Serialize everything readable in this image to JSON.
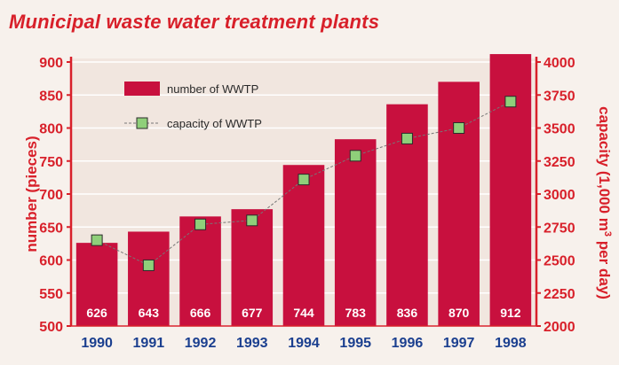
{
  "chart_data": {
    "type": "bar",
    "title": "Municipal waste water treatment plants",
    "categories": [
      "1990",
      "1991",
      "1992",
      "1993",
      "1994",
      "1995",
      "1996",
      "1997",
      "1998"
    ],
    "series": [
      {
        "name": "number of WWTP",
        "type": "bar",
        "axis": "left",
        "values": [
          626,
          643,
          666,
          677,
          744,
          783,
          836,
          870,
          912
        ]
      },
      {
        "name": "capacity of WWTP",
        "type": "line",
        "axis": "right",
        "values": [
          2650,
          2460,
          2770,
          2800,
          3110,
          3290,
          3420,
          3500,
          3700
        ]
      }
    ],
    "ylabel_left": "number (pieces)",
    "ylabel_right_prefix": "capacity (1,000 m",
    "ylabel_right_sup": "3",
    "ylabel_right_suffix": " per day)",
    "ylim_left": [
      500,
      900
    ],
    "yticks_left": [
      500,
      550,
      600,
      650,
      700,
      750,
      800,
      850,
      900
    ],
    "ylim_right": [
      2000,
      4000
    ],
    "yticks_right": [
      2000,
      2250,
      2500,
      2750,
      3000,
      3250,
      3500,
      3750,
      4000
    ],
    "grid": "horizontal",
    "legend": "top-left",
    "colors": {
      "background": "#f7f1ec",
      "title": "#d8202a",
      "bar": "#c8103e",
      "bar_label": "#ffffff",
      "axis_left": "#d8202a",
      "axis_right": "#d8202a",
      "tick_text": "#d8202a",
      "x_tick_text": "#1b3f8f",
      "grid": "#ffffff",
      "line": "#777777",
      "marker_fill": "#8fcf7a",
      "marker_stroke": "#2b2b2b"
    }
  }
}
